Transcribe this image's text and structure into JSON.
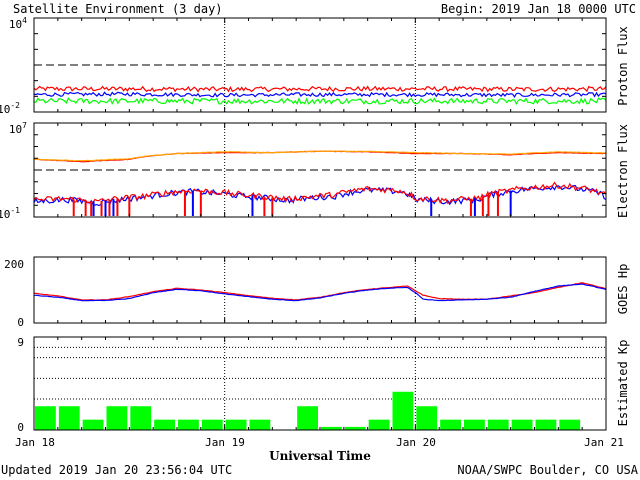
{
  "header": {
    "title": "Satellite Environment (3 day)",
    "begin": "Begin:  2019 Jan 18 0000 UTC"
  },
  "footer": {
    "updated": "Updated 2019 Jan 20 23:56:04 UTC",
    "credit": "NOAA/SWPC Boulder, CO USA"
  },
  "colors": {
    "red": "#ff0000",
    "blue": "#0000ff",
    "green": "#00ff00",
    "orange": "#ffa500",
    "kp_bar": "#00ff00"
  },
  "chart_data": [
    {
      "type": "line",
      "ylabel": "Proton Flux",
      "yscale": "log",
      "ylim": [
        0.01,
        10000
      ],
      "ytick_labels": [
        {
          "base": "10",
          "exp": "4"
        },
        {
          "base": "10",
          "exp": "-2"
        }
      ],
      "threshold": 10,
      "x_range_hours": [
        0,
        72
      ],
      "series": [
        {
          "color": "red",
          "x": [
            0,
            12,
            24,
            36,
            48,
            60,
            72
          ],
          "y": [
            0.3,
            0.3,
            0.28,
            0.3,
            0.3,
            0.28,
            0.3
          ],
          "noise": 0.15
        },
        {
          "color": "blue",
          "x": [
            0,
            12,
            24,
            36,
            48,
            60,
            72
          ],
          "y": [
            0.13,
            0.14,
            0.12,
            0.13,
            0.13,
            0.12,
            0.13
          ],
          "noise": 0.12
        },
        {
          "color": "green",
          "x": [
            0,
            12,
            24,
            36,
            48,
            60,
            72
          ],
          "y": [
            0.05,
            0.05,
            0.05,
            0.05,
            0.05,
            0.05,
            0.05
          ],
          "noise": 0.18
        }
      ]
    },
    {
      "type": "line",
      "ylabel": "Electron Flux",
      "yscale": "log",
      "ylim": [
        0.1,
        10000000
      ],
      "ytick_labels": [
        {
          "base": "10",
          "exp": "7"
        },
        {
          "base": "10",
          "exp": "-1"
        }
      ],
      "threshold": 1000,
      "x_range_hours": [
        0,
        72
      ],
      "series": [
        {
          "color": "red",
          "x": [
            0,
            6,
            12,
            18,
            24,
            30,
            36,
            42,
            48,
            54,
            60,
            66,
            72
          ],
          "y": [
            8000,
            5000,
            8000,
            25000,
            30000,
            30000,
            40000,
            35000,
            25000,
            25000,
            20000,
            30000,
            25000
          ],
          "noise": 0.02
        },
        {
          "color": "orange",
          "x": [
            0,
            6,
            12,
            18,
            24,
            30,
            36,
            42,
            48,
            54,
            60,
            66,
            72
          ],
          "y": [
            8000,
            6000,
            9000,
            25000,
            35000,
            30000,
            40000,
            38000,
            30000,
            25000,
            22000,
            35000,
            28000
          ],
          "noise": 0.02
        },
        {
          "color": "blue",
          "x": [
            0,
            4,
            8,
            11,
            14,
            20,
            26,
            32,
            38,
            42,
            46,
            48,
            52,
            56,
            60,
            66,
            72
          ],
          "y": [
            2,
            3,
            1.5,
            3,
            5,
            15,
            6,
            2.5,
            6,
            20,
            15,
            3,
            2,
            3,
            15,
            40,
            5
          ],
          "noise": 0.25
        },
        {
          "color": "red",
          "x": [
            0,
            4,
            8,
            11,
            14,
            20,
            26,
            32,
            38,
            42,
            46,
            48,
            52,
            56,
            60,
            66,
            72
          ],
          "y": [
            3,
            3.5,
            2,
            4,
            6,
            18,
            8,
            3,
            8,
            25,
            18,
            4,
            2.5,
            4,
            18,
            50,
            6
          ],
          "noise": 0.25
        }
      ],
      "dropouts": [
        {
          "color": "red",
          "x": [
            5,
            6.5,
            7.2,
            8.5,
            9.5,
            10.5,
            12,
            19,
            21,
            29,
            30,
            55,
            56.5,
            57.2,
            58.4
          ]
        },
        {
          "color": "blue",
          "x": [
            7.5,
            9,
            10,
            20,
            27.5,
            50,
            55.5,
            60
          ]
        }
      ]
    },
    {
      "type": "line",
      "ylabel": "GOES Hp",
      "ylim": [
        0,
        200
      ],
      "ytick_labels": [
        "200",
        "0"
      ],
      "x_range_hours": [
        0,
        72
      ],
      "series": [
        {
          "color": "red",
          "x": [
            0,
            3,
            6,
            9,
            12,
            15,
            18,
            21,
            24,
            27,
            30,
            33,
            36,
            39,
            42,
            45,
            47,
            48,
            49,
            51,
            54,
            57,
            60,
            63,
            66,
            69,
            72
          ],
          "y": [
            90,
            82,
            70,
            70,
            80,
            95,
            105,
            100,
            92,
            83,
            75,
            70,
            78,
            92,
            102,
            108,
            112,
            98,
            84,
            74,
            72,
            72,
            82,
            92,
            108,
            122,
            104
          ],
          "noise": 0.6
        },
        {
          "color": "blue",
          "x": [
            0,
            3,
            6,
            9,
            12,
            15,
            18,
            21,
            24,
            27,
            30,
            33,
            36,
            39,
            42,
            45,
            47,
            48,
            49,
            51,
            54,
            57,
            60,
            63,
            66,
            69,
            72
          ],
          "y": [
            84,
            78,
            68,
            68,
            74,
            92,
            102,
            98,
            88,
            80,
            72,
            68,
            76,
            90,
            100,
            106,
            108,
            92,
            72,
            68,
            70,
            72,
            78,
            96,
            112,
            118,
            102
          ],
          "noise": 0.6
        }
      ]
    },
    {
      "type": "bar",
      "ylabel": "Estimated Kp",
      "ylim": [
        0,
        9
      ],
      "ytick_labels": [
        "9",
        "0"
      ],
      "gridlines": [
        3,
        5,
        7,
        8,
        9
      ],
      "x_range_hours": [
        0,
        72
      ],
      "bin_hours": 3,
      "values": [
        2.3,
        2.3,
        1,
        2.3,
        2.3,
        1,
        1,
        1,
        1,
        1,
        0,
        2.3,
        0.3,
        0.3,
        1,
        3.7,
        2.3,
        1,
        1,
        1,
        1,
        1,
        1,
        0
      ]
    }
  ],
  "x_axis": {
    "label": "Universal Time",
    "ticks": [
      "Jan 18",
      "Jan 19",
      "Jan 20",
      "Jan 21"
    ]
  }
}
